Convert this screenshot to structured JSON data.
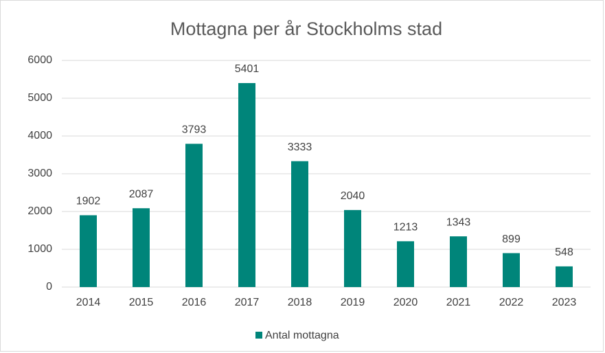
{
  "chart_data": {
    "type": "bar",
    "title": "Mottagna per år Stockholms stad",
    "categories": [
      "2014",
      "2015",
      "2016",
      "2017",
      "2018",
      "2019",
      "2020",
      "2021",
      "2022",
      "2023"
    ],
    "series": [
      {
        "name": "Antal mottagna",
        "color": "#00857a",
        "values": [
          1902,
          2087,
          3793,
          5401,
          3333,
          2040,
          1213,
          1343,
          899,
          548
        ]
      }
    ],
    "ylim": [
      0,
      6000
    ],
    "yticks": [
      0,
      1000,
      2000,
      3000,
      4000,
      5000,
      6000
    ],
    "grid": true,
    "legend": "bottom",
    "data_labels": true
  }
}
